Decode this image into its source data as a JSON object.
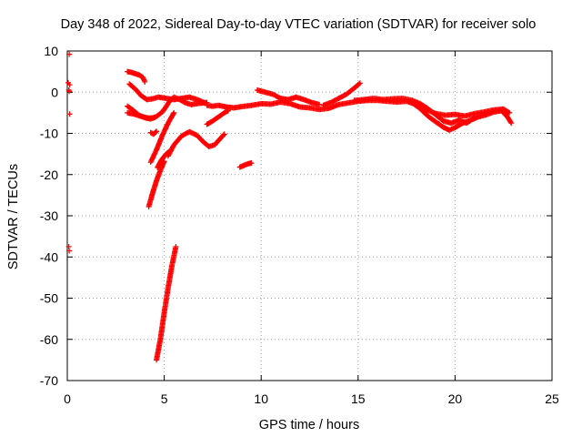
{
  "chart_data": {
    "type": "scatter",
    "title": "Day 348 of 2022, Sidereal Day-to-day VTEC variation (SDTVAR) for receiver solo",
    "xlabel": "GPS time / hours",
    "ylabel": "SDTVAR / TECUs",
    "xlim": [
      0,
      25
    ],
    "ylim": [
      -70,
      10
    ],
    "xticks": [
      0,
      5,
      10,
      15,
      20,
      25
    ],
    "yticks": [
      10,
      0,
      -10,
      -20,
      -30,
      -40,
      -50,
      -60,
      -70
    ],
    "xtick_labels": [
      "0",
      "5",
      "10",
      "15",
      "20",
      "25"
    ],
    "ytick_labels": [
      "10",
      "0",
      "-10",
      "-20",
      "-30",
      "-40",
      "-50",
      "-60",
      "-70"
    ],
    "grid": true,
    "marker": "+",
    "color": "#ff0000",
    "series": [
      {
        "name": "start-cluster",
        "points": [
          [
            0.1,
            9.2
          ],
          [
            0.05,
            2.3
          ],
          [
            0.12,
            1.8
          ],
          [
            0.08,
            0.5
          ],
          [
            0.1,
            0.2
          ],
          [
            0.12,
            -5.3
          ],
          [
            0.08,
            -37.5
          ],
          [
            0.1,
            -38.5
          ]
        ]
      },
      {
        "name": "track-upper",
        "points": [
          [
            3.1,
            5.0
          ],
          [
            3.3,
            4.8
          ],
          [
            3.5,
            4.5
          ],
          [
            3.7,
            4.2
          ],
          [
            3.9,
            3.6
          ],
          [
            4.0,
            2.5
          ]
        ]
      },
      {
        "name": "track-descending",
        "points": [
          [
            3.2,
            2.0
          ],
          [
            3.5,
            0.8
          ],
          [
            3.8,
            -0.8
          ],
          [
            4.1,
            -1.8
          ],
          [
            4.4,
            -1.6
          ],
          [
            4.7,
            -1.2
          ],
          [
            5.1,
            -1.5
          ],
          [
            5.5,
            -1.8
          ],
          [
            5.9,
            -1.5
          ],
          [
            6.3,
            -1.2
          ],
          [
            6.7,
            -1.8
          ],
          [
            7.1,
            -2.6
          ]
        ]
      },
      {
        "name": "track-lower",
        "points": [
          [
            3.1,
            -3.4
          ],
          [
            3.4,
            -4.4
          ],
          [
            3.7,
            -5.6
          ],
          [
            4.0,
            -6.2
          ],
          [
            4.3,
            -6.5
          ],
          [
            4.6,
            -5.9
          ],
          [
            4.9,
            -4.8
          ],
          [
            5.1,
            -3.5
          ],
          [
            5.3,
            -2.0
          ],
          [
            5.5,
            -1.2
          ],
          [
            5.8,
            -1.8
          ],
          [
            6.1,
            -2.6
          ],
          [
            6.4,
            -3.0
          ],
          [
            6.8,
            -2.7
          ],
          [
            7.2,
            -2.5
          ]
        ]
      },
      {
        "name": "track-flat",
        "points": [
          [
            3.1,
            -5.0
          ],
          [
            3.5,
            -5.4
          ],
          [
            3.9,
            -6.0
          ],
          [
            4.2,
            -6.3
          ],
          [
            4.5,
            -6.2
          ]
        ]
      },
      {
        "name": "track-mid",
        "points": [
          [
            7.2,
            -3.2
          ],
          [
            7.5,
            -3.4
          ],
          [
            7.8,
            -3.2
          ],
          [
            8.2,
            -3.6
          ],
          [
            8.6,
            -3.8
          ],
          [
            9.0,
            -3.5
          ],
          [
            9.5,
            -3.2
          ],
          [
            10.0,
            -2.8
          ],
          [
            10.5,
            -2.9
          ],
          [
            11.0,
            -2.4
          ],
          [
            11.5,
            -2.8
          ],
          [
            12.0,
            -3.6
          ],
          [
            12.5,
            -3.8
          ],
          [
            13.0,
            -4.2
          ],
          [
            13.5,
            -3.9
          ],
          [
            14.0,
            -3.0
          ],
          [
            14.5,
            -2.6
          ],
          [
            15.0,
            -2.2
          ],
          [
            15.5,
            -2.0
          ],
          [
            16.0,
            -2.0
          ],
          [
            16.5,
            -2.2
          ],
          [
            17.0,
            -2.4
          ],
          [
            17.5,
            -2.2
          ],
          [
            18.0,
            -3.0
          ],
          [
            18.5,
            -4.2
          ],
          [
            19.0,
            -5.2
          ],
          [
            19.5,
            -5.6
          ],
          [
            20.0,
            -5.4
          ],
          [
            20.5,
            -5.8
          ],
          [
            21.0,
            -5.2
          ],
          [
            21.5,
            -4.8
          ],
          [
            22.0,
            -4.3
          ],
          [
            22.5,
            -4.1
          ],
          [
            22.8,
            -5.0
          ]
        ]
      },
      {
        "name": "track-mid-upper",
        "points": [
          [
            9.8,
            0.5
          ],
          [
            10.2,
            0.0
          ],
          [
            10.6,
            -0.5
          ],
          [
            11.0,
            -1.5
          ],
          [
            11.4,
            -1.8
          ],
          [
            11.8,
            -1.2
          ],
          [
            12.2,
            -1.8
          ],
          [
            12.6,
            -2.5
          ],
          [
            13.0,
            -3.0
          ]
        ]
      },
      {
        "name": "track-ascending",
        "points": [
          [
            13.2,
            -3.2
          ],
          [
            13.6,
            -2.5
          ],
          [
            14.0,
            -1.5
          ],
          [
            14.4,
            -0.5
          ],
          [
            14.8,
            1.0
          ],
          [
            15.1,
            2.2
          ]
        ]
      },
      {
        "name": "track-mid-high",
        "points": [
          [
            14.8,
            -2.0
          ],
          [
            15.3,
            -1.8
          ],
          [
            15.8,
            -1.5
          ],
          [
            16.3,
            -1.8
          ],
          [
            16.8,
            -1.6
          ],
          [
            17.3,
            -1.5
          ],
          [
            17.8,
            -2.0
          ],
          [
            18.2,
            -2.8
          ],
          [
            18.6,
            -4.0
          ],
          [
            19.0,
            -5.5
          ],
          [
            19.4,
            -7.0
          ],
          [
            19.8,
            -7.5
          ],
          [
            20.2,
            -6.8
          ],
          [
            20.6,
            -7.5
          ],
          [
            21.0,
            -6.2
          ]
        ]
      },
      {
        "name": "track-low-late",
        "points": [
          [
            17.8,
            -2.6
          ],
          [
            18.2,
            -4.0
          ],
          [
            18.6,
            -5.8
          ],
          [
            19.0,
            -7.2
          ],
          [
            19.4,
            -8.5
          ],
          [
            19.7,
            -9.2
          ],
          [
            20.0,
            -8.6
          ],
          [
            20.4,
            -7.5
          ],
          [
            20.8,
            -6.8
          ],
          [
            21.2,
            -6.0
          ],
          [
            21.6,
            -5.5
          ],
          [
            22.0,
            -4.8
          ],
          [
            22.4,
            -4.5
          ],
          [
            22.7,
            -6.0
          ],
          [
            22.9,
            -7.5
          ]
        ]
      },
      {
        "name": "track-short-a",
        "points": [
          [
            7.2,
            -7.8
          ],
          [
            7.5,
            -7.0
          ],
          [
            7.8,
            -6.0
          ],
          [
            8.1,
            -5.0
          ],
          [
            8.3,
            -4.5
          ]
        ]
      },
      {
        "name": "track-short-b",
        "points": [
          [
            4.3,
            -9.8
          ],
          [
            4.45,
            -10.2
          ],
          [
            4.6,
            -9.5
          ]
        ]
      },
      {
        "name": "track-hook",
        "points": [
          [
            5.2,
            -15.5
          ],
          [
            5.5,
            -12.8
          ],
          [
            5.9,
            -10.6
          ],
          [
            6.3,
            -9.6
          ],
          [
            6.7,
            -10.5
          ],
          [
            7.0,
            -12.0
          ],
          [
            7.3,
            -13.2
          ],
          [
            7.6,
            -12.8
          ],
          [
            7.9,
            -11.2
          ],
          [
            8.1,
            -10.2
          ]
        ]
      },
      {
        "name": "track-steep-1",
        "points": [
          [
            4.3,
            -17.0
          ],
          [
            4.6,
            -14.0
          ],
          [
            4.9,
            -10.5
          ],
          [
            5.2,
            -7.5
          ],
          [
            5.5,
            -5.0
          ]
        ]
      },
      {
        "name": "track-steep-2",
        "points": [
          [
            4.65,
            -18.3
          ],
          [
            4.85,
            -16.5
          ],
          [
            5.1,
            -15.0
          ],
          [
            5.3,
            -14.2
          ]
        ]
      },
      {
        "name": "track-steep-3",
        "points": [
          [
            4.2,
            -27.8
          ],
          [
            4.4,
            -24.5
          ],
          [
            4.6,
            -21.5
          ],
          [
            4.8,
            -19.0
          ],
          [
            5.0,
            -16.8
          ]
        ]
      },
      {
        "name": "track-isolated",
        "points": [
          [
            8.9,
            -18.2
          ],
          [
            9.1,
            -17.8
          ],
          [
            9.3,
            -17.4
          ],
          [
            9.5,
            -17.2
          ]
        ]
      },
      {
        "name": "track-dive",
        "points": [
          [
            4.6,
            -65.0
          ],
          [
            4.8,
            -60.0
          ],
          [
            5.0,
            -53.5
          ],
          [
            5.2,
            -47.5
          ],
          [
            5.4,
            -42.0
          ],
          [
            5.6,
            -37.5
          ]
        ]
      }
    ]
  }
}
